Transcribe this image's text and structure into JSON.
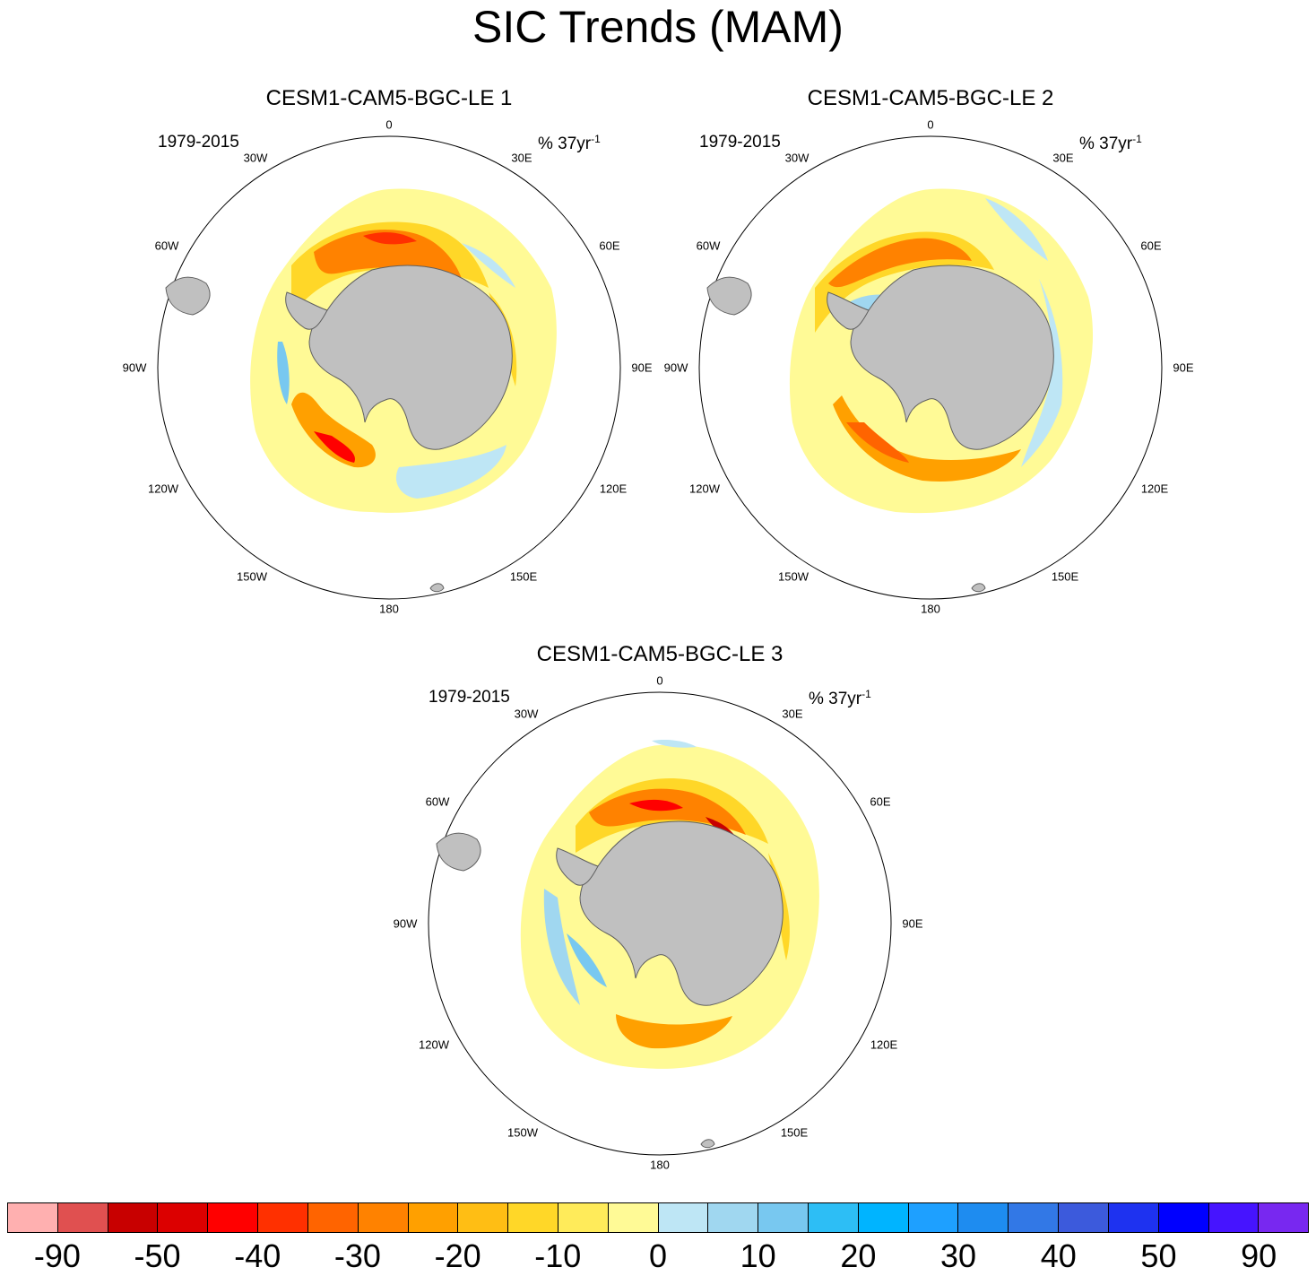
{
  "title": "SIC Trends (MAM)",
  "panels": [
    {
      "title": "CESM1-CAM5-BGC-LE 1",
      "period": "1979-2015",
      "units_prefix": "% 37yr",
      "units_exponent": "-1",
      "sea_ice_pattern": "strong loss in Weddell Sea and Amundsen/Bellingshausen Seas; slight gain west of Antarctic Peninsula and in Ross/Pacific sector"
    },
    {
      "title": "CESM1-CAM5-BGC-LE 2",
      "period": "1979-2015",
      "units_prefix": "% 37yr",
      "units_exponent": "-1",
      "sea_ice_pattern": "loss in Weddell Sea and Ross/Amundsen Seas; gain in Indian Ocean sector and near Peninsula"
    },
    {
      "title": "CESM1-CAM5-BGC-LE 3",
      "period": "1979-2015",
      "units_prefix": "% 37yr",
      "units_exponent": "-1",
      "sea_ice_pattern": "strongest loss in Weddell Sea and Indian sector coast; moderate loss in Ross Sea; small gain near Bellingshausen Sea"
    }
  ],
  "longitude_labels": {
    "0": "0",
    "30E": "30E",
    "60E": "60E",
    "90E": "90E",
    "120E": "120E",
    "150E": "150E",
    "180": "180",
    "150W": "150W",
    "120W": "120W",
    "90W": "90W",
    "60W": "60W",
    "30W": "30W"
  },
  "colorbar": {
    "colors": [
      "#ffb0b0",
      "#e05050",
      "#c80000",
      "#dc0000",
      "#ff0000",
      "#ff3000",
      "#ff6400",
      "#ff8200",
      "#ffa000",
      "#ffbe14",
      "#ffd728",
      "#ffeb5a",
      "#fffa96",
      "#bee6f5",
      "#a0d7f0",
      "#78c8f0",
      "#2dbef5",
      "#00b4ff",
      "#1ea0ff",
      "#1e8cf0",
      "#3278e6",
      "#3c5adc",
      "#1e32f0",
      "#0000ff",
      "#4614ff",
      "#7828f0"
    ],
    "tick_labels": [
      "-90",
      "-50",
      "-40",
      "-30",
      "-20",
      "-10",
      "0",
      "10",
      "20",
      "30",
      "40",
      "50",
      "90"
    ]
  }
}
